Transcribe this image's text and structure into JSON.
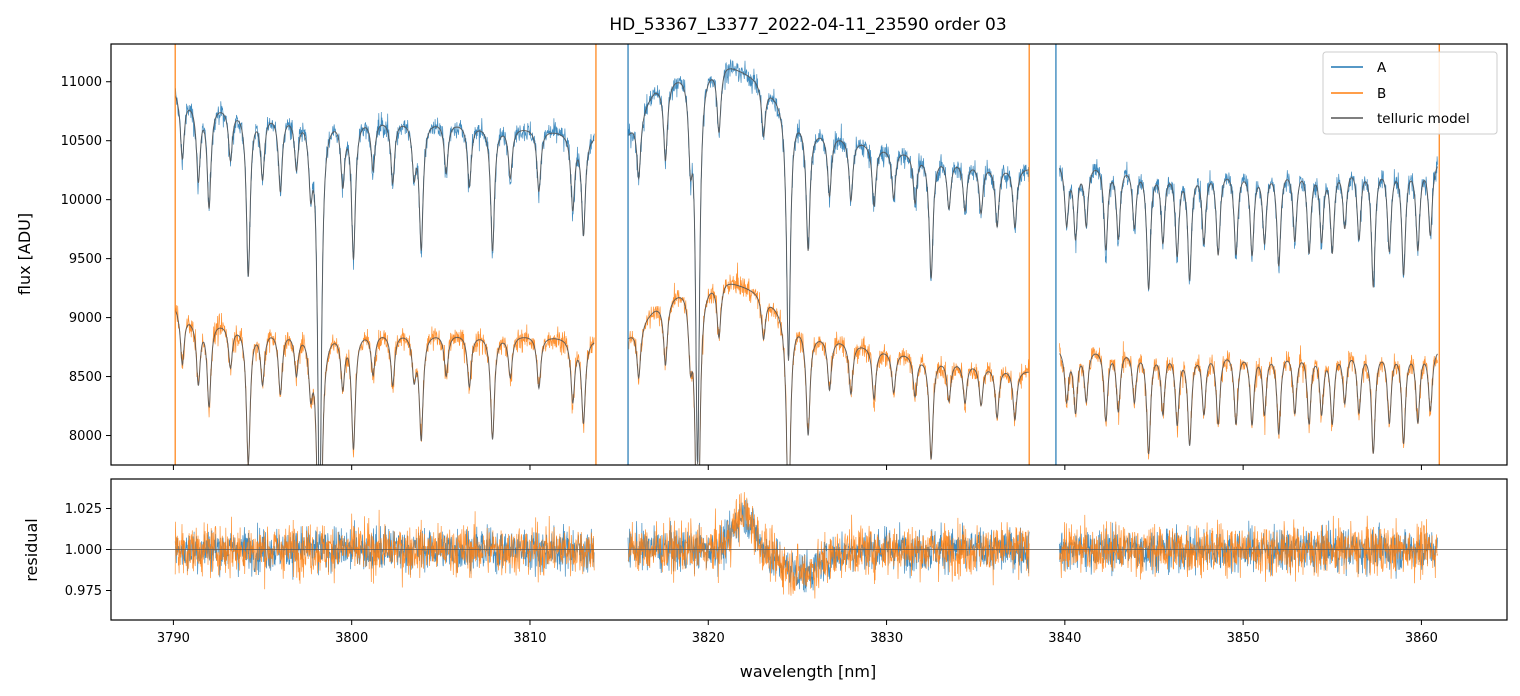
{
  "chart_data": [
    {
      "type": "line",
      "title": "HD_53367_L3377_2022-04-11_23590  order 03",
      "xlabel": "",
      "ylabel": "flux [ADU]",
      "xlim": [
        3786.5,
        3864.8
      ],
      "ylim": [
        7750,
        11320
      ],
      "xticks": [
        3790,
        3800,
        3810,
        3820,
        3830,
        3840,
        3850,
        3860
      ],
      "yticks": [
        8000,
        8500,
        9000,
        9500,
        10000,
        10500,
        11000
      ],
      "ytick_labels": [
        "8000",
        "8500",
        "9000",
        "9500",
        "10000",
        "10500",
        "11000"
      ],
      "segments": [
        [
          3790.1,
          3813.6
        ],
        [
          3815.5,
          3838.0
        ],
        [
          3839.7,
          3860.9
        ]
      ],
      "legend": {
        "position": "top-right",
        "entries": [
          {
            "label": "A",
            "color": "#1f77b4"
          },
          {
            "label": "B",
            "color": "#ff7f0e"
          },
          {
            "label": "telluric model",
            "color": "#555555"
          }
        ]
      },
      "series": [
        {
          "name": "A",
          "color": "#1f77b4",
          "continuum": {
            "x": [
              3790.1,
              3791,
              3795,
              3800,
              3805,
              3810,
              3813.6,
              3815.5,
              3817,
              3819,
              3821,
              3823,
              3826,
              3830,
              3835,
              3838.0,
              3839.7,
              3842,
              3846,
              3850,
              3855,
              3860,
              3860.9
            ],
            "y": [
              10950,
              10860,
              10760,
              10720,
              10680,
              10620,
              10560,
              10580,
              10960,
              11160,
              11180,
              11020,
              10620,
              10460,
              10330,
              10280,
              10340,
              10340,
              10300,
              10290,
              10330,
              10340,
              10360
            ]
          },
          "noise": 80
        },
        {
          "name": "B",
          "color": "#ff7f0e",
          "continuum": {
            "x": [
              3790.1,
              3791,
              3795,
              3800,
              3805,
              3810,
              3813.6,
              3815.5,
              3817,
              3819,
              3821,
              3823,
              3826,
              3830,
              3835,
              3838.0,
              3839.7,
              3842,
              3846,
              3850,
              3855,
              3860,
              3860.9
            ],
            "y": [
              9120,
              9020,
              8920,
              8900,
              8880,
              8860,
              8830,
              8850,
              9100,
              9330,
              9340,
              9220,
              8880,
              8740,
              8630,
              8560,
              8760,
              8770,
              8750,
              8740,
              8760,
              8760,
              8760
            ]
          },
          "noise": 80
        },
        {
          "name": "telluric model",
          "color": "#555555"
        }
      ],
      "absorption_lines": [
        {
          "x": 3790.5,
          "depth": 0.05
        },
        {
          "x": 3791.4,
          "depth": 0.06
        },
        {
          "x": 3792.0,
          "depth": 0.08
        },
        {
          "x": 3793.2,
          "depth": 0.04
        },
        {
          "x": 3794.2,
          "depth": 0.13
        },
        {
          "x": 3795.0,
          "depth": 0.05
        },
        {
          "x": 3796.0,
          "depth": 0.06
        },
        {
          "x": 3796.9,
          "depth": 0.04
        },
        {
          "x": 3797.7,
          "depth": 0.05
        },
        {
          "x": 3798.2,
          "depth": 0.32
        },
        {
          "x": 3799.5,
          "depth": 0.05
        },
        {
          "x": 3800.1,
          "depth": 0.11
        },
        {
          "x": 3801.2,
          "depth": 0.04
        },
        {
          "x": 3802.3,
          "depth": 0.05
        },
        {
          "x": 3803.5,
          "depth": 0.04
        },
        {
          "x": 3803.9,
          "depth": 0.1
        },
        {
          "x": 3805.3,
          "depth": 0.04
        },
        {
          "x": 3806.6,
          "depth": 0.05
        },
        {
          "x": 3807.9,
          "depth": 0.1
        },
        {
          "x": 3808.9,
          "depth": 0.04
        },
        {
          "x": 3810.5,
          "depth": 0.05
        },
        {
          "x": 3812.4,
          "depth": 0.06
        },
        {
          "x": 3813.0,
          "depth": 0.08
        },
        {
          "x": 3816.1,
          "depth": 0.05
        },
        {
          "x": 3817.6,
          "depth": 0.06
        },
        {
          "x": 3819.0,
          "depth": 0.06
        },
        {
          "x": 3819.4,
          "depth": 0.3
        },
        {
          "x": 3820.6,
          "depth": 0.05
        },
        {
          "x": 3823.1,
          "depth": 0.04
        },
        {
          "x": 3824.5,
          "depth": 0.2
        },
        {
          "x": 3825.6,
          "depth": 0.1
        },
        {
          "x": 3826.8,
          "depth": 0.05
        },
        {
          "x": 3828.0,
          "depth": 0.05
        },
        {
          "x": 3829.3,
          "depth": 0.05
        },
        {
          "x": 3830.4,
          "depth": 0.04
        },
        {
          "x": 3831.6,
          "depth": 0.04
        },
        {
          "x": 3832.5,
          "depth": 0.1
        },
        {
          "x": 3833.5,
          "depth": 0.04
        },
        {
          "x": 3834.4,
          "depth": 0.04
        },
        {
          "x": 3835.3,
          "depth": 0.04
        },
        {
          "x": 3836.2,
          "depth": 0.05
        },
        {
          "x": 3837.2,
          "depth": 0.05
        },
        {
          "x": 3840.1,
          "depth": 0.05
        },
        {
          "x": 3840.6,
          "depth": 0.06
        },
        {
          "x": 3841.2,
          "depth": 0.05
        },
        {
          "x": 3842.3,
          "depth": 0.07
        },
        {
          "x": 3843.0,
          "depth": 0.06
        },
        {
          "x": 3843.9,
          "depth": 0.05
        },
        {
          "x": 3844.7,
          "depth": 0.1
        },
        {
          "x": 3845.5,
          "depth": 0.06
        },
        {
          "x": 3846.3,
          "depth": 0.07
        },
        {
          "x": 3847.0,
          "depth": 0.09
        },
        {
          "x": 3847.8,
          "depth": 0.06
        },
        {
          "x": 3848.6,
          "depth": 0.07
        },
        {
          "x": 3849.6,
          "depth": 0.07
        },
        {
          "x": 3850.5,
          "depth": 0.07
        },
        {
          "x": 3851.2,
          "depth": 0.06
        },
        {
          "x": 3852.0,
          "depth": 0.08
        },
        {
          "x": 3852.9,
          "depth": 0.06
        },
        {
          "x": 3853.7,
          "depth": 0.07
        },
        {
          "x": 3854.4,
          "depth": 0.06
        },
        {
          "x": 3855.0,
          "depth": 0.07
        },
        {
          "x": 3855.7,
          "depth": 0.05
        },
        {
          "x": 3856.5,
          "depth": 0.06
        },
        {
          "x": 3857.3,
          "depth": 0.1
        },
        {
          "x": 3858.2,
          "depth": 0.07
        },
        {
          "x": 3859.0,
          "depth": 0.09
        },
        {
          "x": 3859.8,
          "depth": 0.07
        },
        {
          "x": 3860.5,
          "depth": 0.06
        }
      ],
      "vertical_lines": [
        {
          "x": 3790.1,
          "series": "B"
        },
        {
          "x": 3813.7,
          "series": "B"
        },
        {
          "x": 3815.5,
          "series": "A"
        },
        {
          "x": 3838.0,
          "series": "B"
        },
        {
          "x": 3839.5,
          "series": "A"
        },
        {
          "x": 3861.0,
          "series": "B"
        }
      ]
    },
    {
      "type": "line",
      "title": "",
      "xlabel": "wavelength [nm]",
      "ylabel": "residual",
      "xlim": [
        3786.5,
        3864.8
      ],
      "ylim": [
        0.957,
        1.043
      ],
      "xticks": [
        3790,
        3800,
        3810,
        3820,
        3830,
        3840,
        3850,
        3860
      ],
      "xtick_labels": [
        "3790",
        "3800",
        "3810",
        "3820",
        "3830",
        "3840",
        "3850",
        "3860"
      ],
      "yticks": [
        0.975,
        1.0,
        1.025
      ],
      "ytick_labels": [
        "0.975",
        "1.000",
        "1.025"
      ],
      "reference_line": 1.0,
      "series": [
        {
          "name": "A",
          "color": "#1f77b4",
          "noise": 0.011
        },
        {
          "name": "B",
          "color": "#ff7f0e",
          "noise": 0.013
        }
      ],
      "features": [
        {
          "x": 3822.0,
          "amplitude": 0.022,
          "width": 0.8
        },
        {
          "x": 3825.2,
          "amplitude": -0.014,
          "width": 1.6
        }
      ]
    }
  ]
}
